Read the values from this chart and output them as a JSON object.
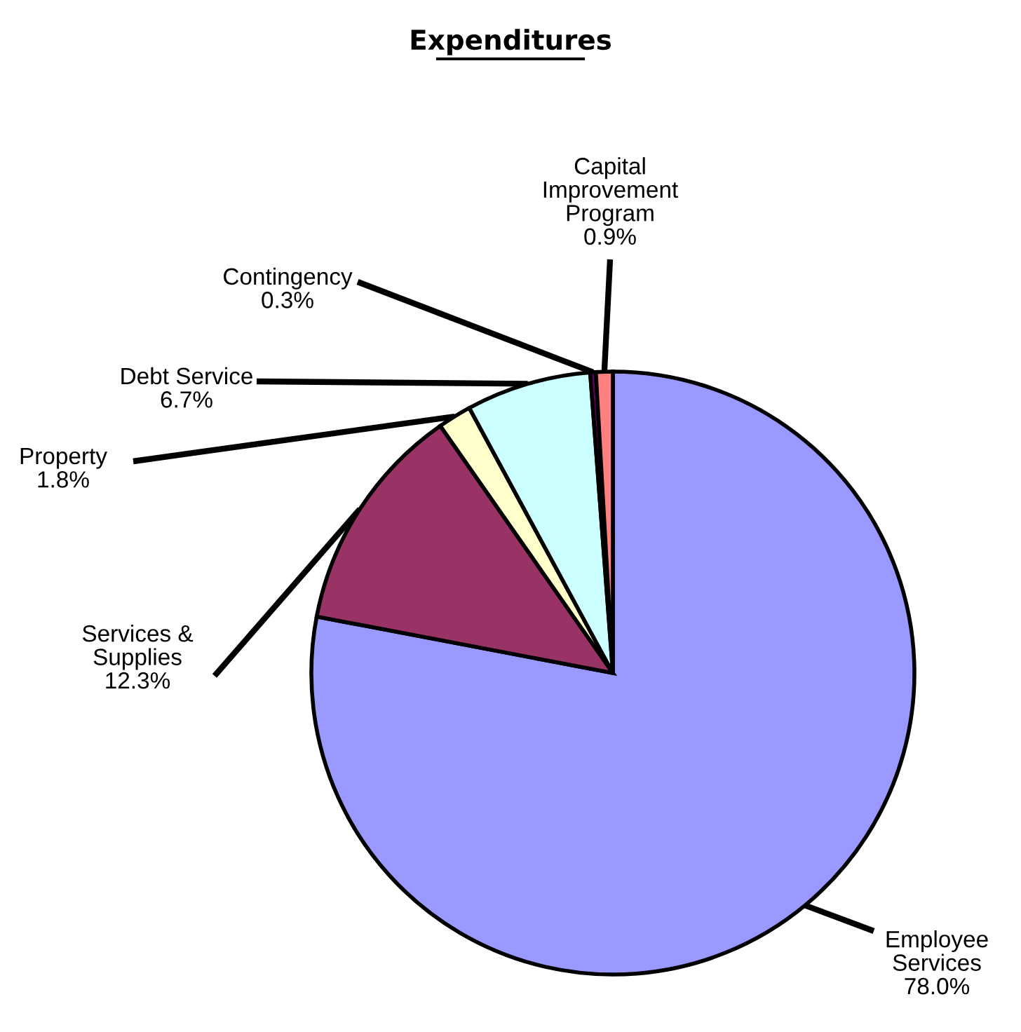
{
  "chart_data": {
    "type": "pie",
    "title": "Expenditures",
    "categories": [
      "Employee\nServices",
      "Services &\nSupplies",
      "Property",
      "Debt Service",
      "Contingency",
      "Capital\nImprovement\nProgram"
    ],
    "values": [
      78.0,
      12.3,
      1.8,
      6.7,
      0.3,
      0.9
    ],
    "value_labels": [
      "78.0%",
      "12.3%",
      "1.8%",
      "6.7%",
      "0.3%",
      "0.9%"
    ],
    "colors": [
      "#9999ff",
      "#993366",
      "#ffffcc",
      "#ccffff",
      "#660066",
      "#ff8080"
    ],
    "legend": false
  }
}
